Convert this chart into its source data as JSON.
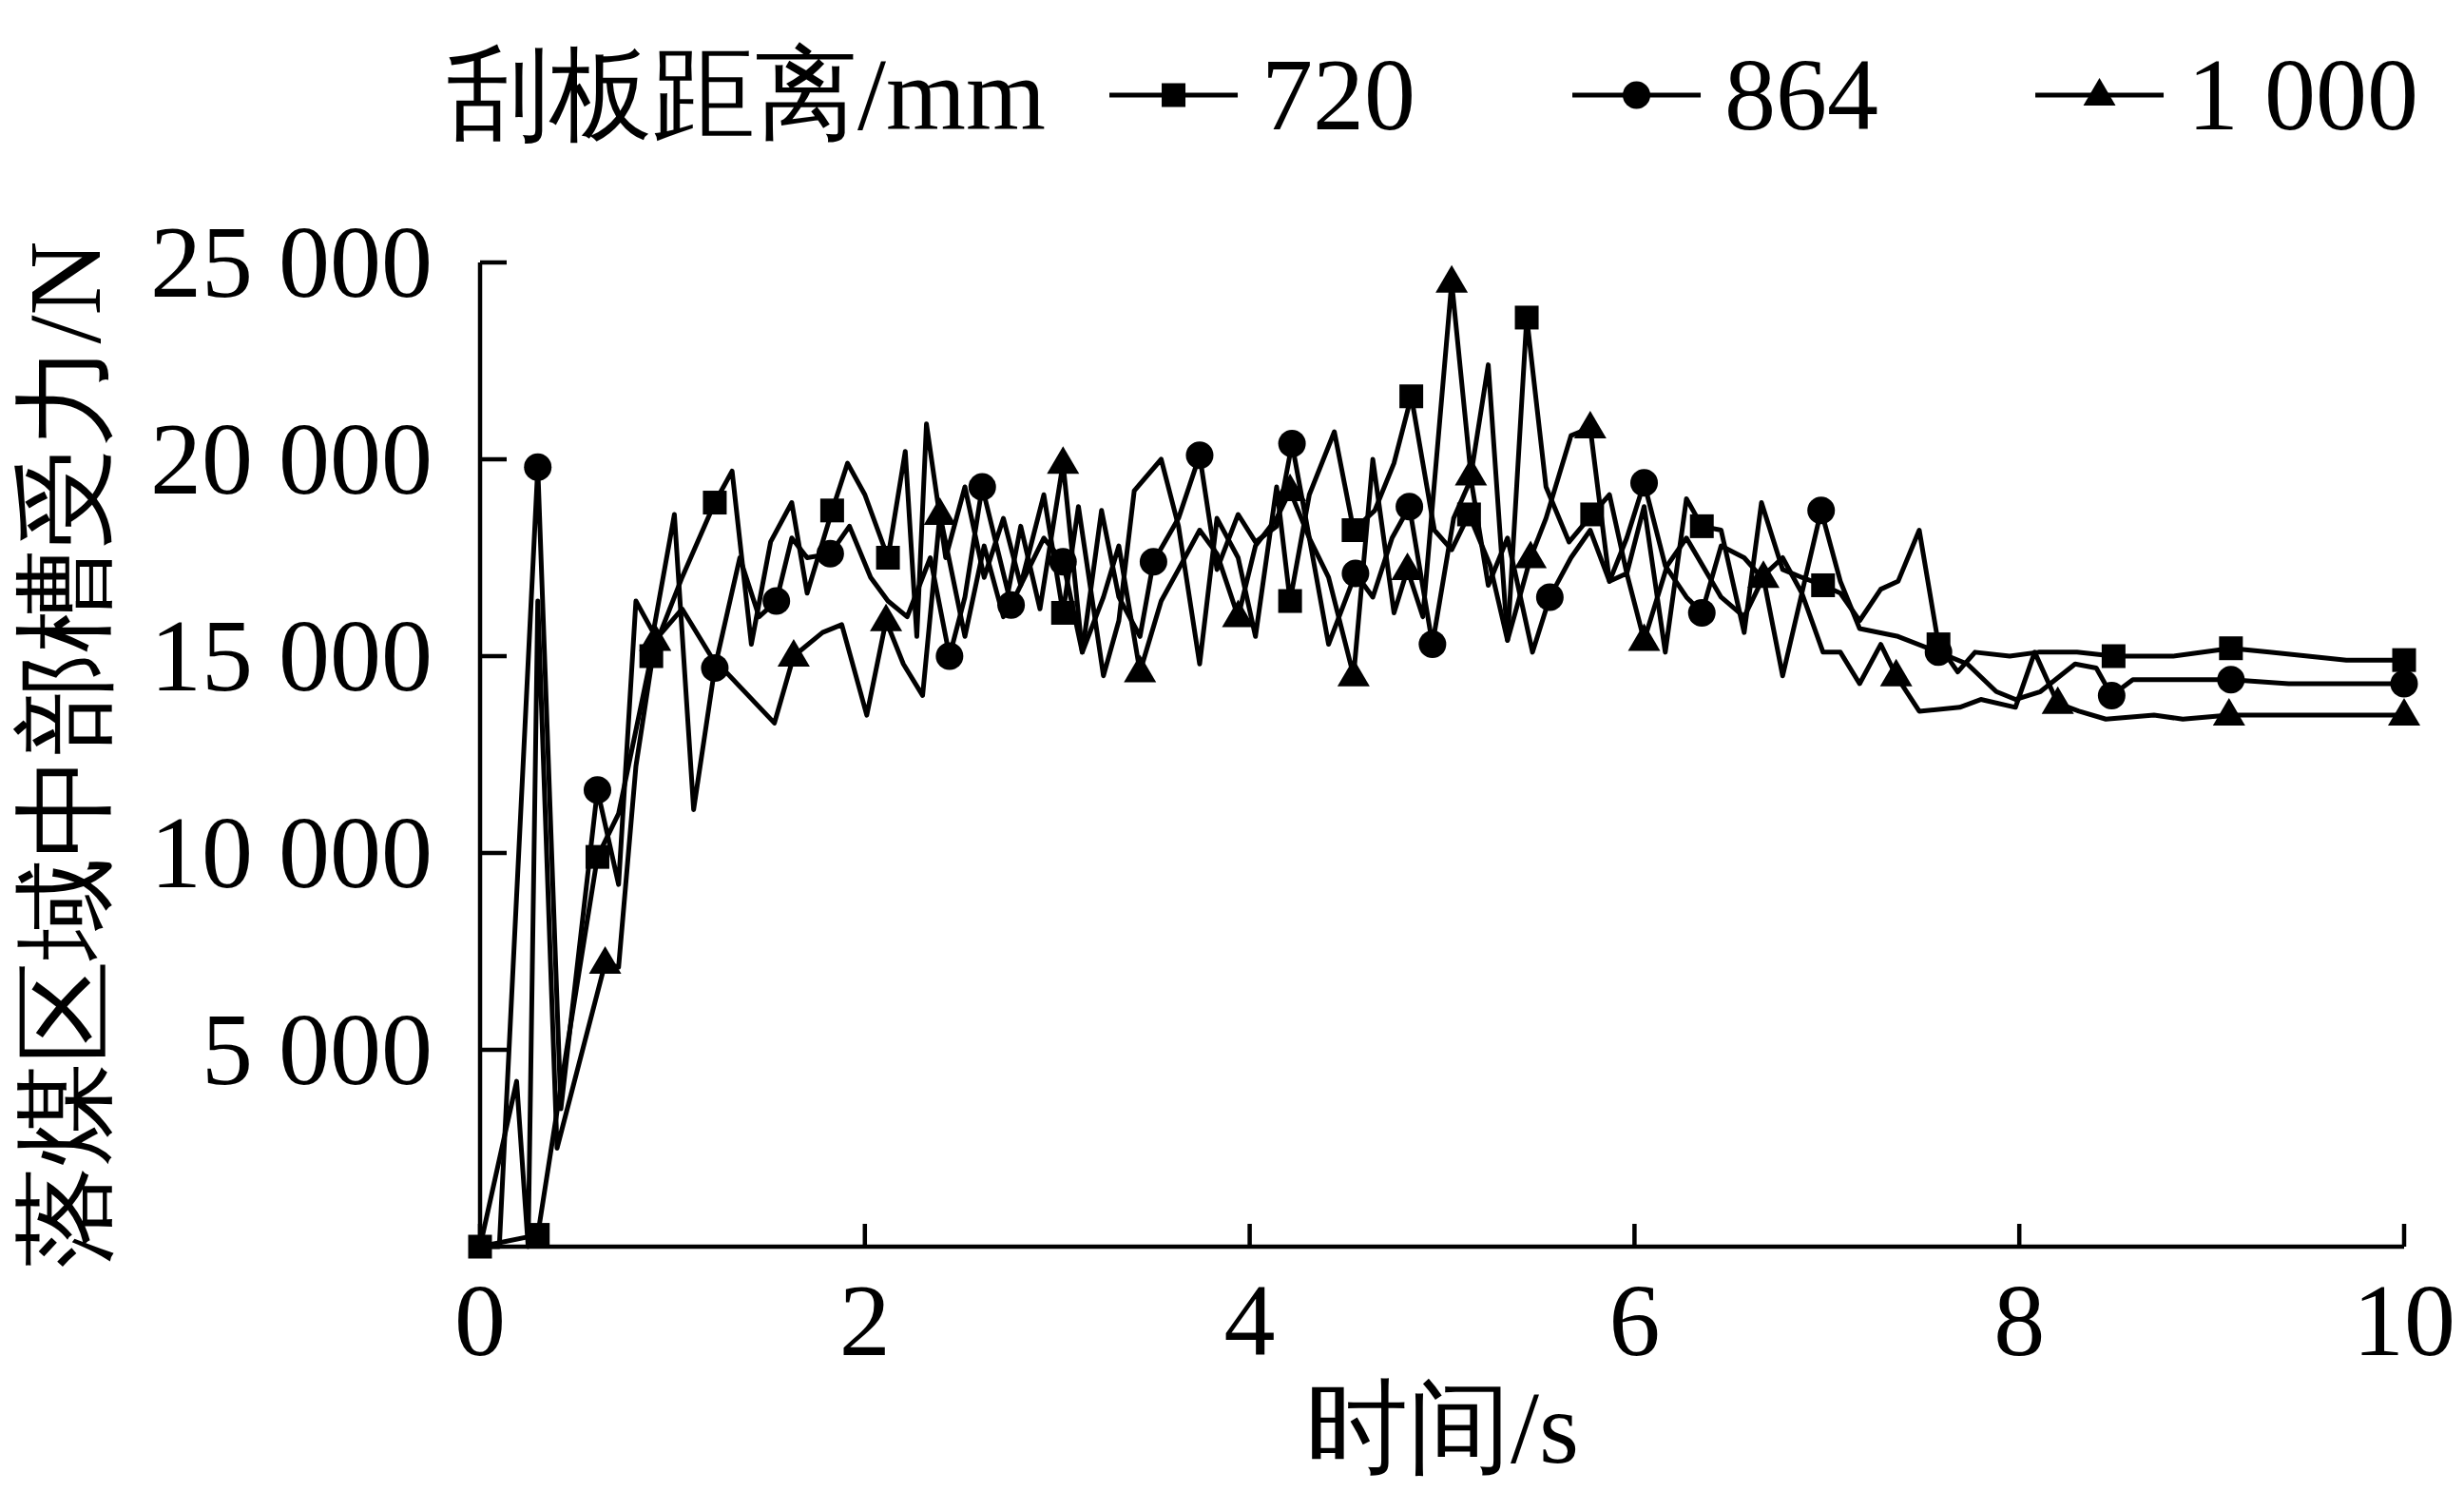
{
  "chart_data": {
    "type": "line",
    "xlabel": "时间/s",
    "ylabel": "落煤区域中部槽受力/N",
    "legend_title": "刮板距离/mm",
    "legend": "top",
    "line_style": "solid",
    "xlim": [
      0,
      10
    ],
    "ylim": [
      0,
      25000
    ],
    "xticks": [
      0,
      2,
      4,
      6,
      8,
      10
    ],
    "yticks": [
      {
        "value": 5000,
        "label": "5 000"
      },
      {
        "value": 10000,
        "label": "10 000"
      },
      {
        "value": 15000,
        "label": "15 000"
      },
      {
        "value": 20000,
        "label": "20 000"
      },
      {
        "value": 25000,
        "label": "25 000"
      }
    ],
    "series": [
      {
        "type": "line",
        "color": "#000000",
        "x": [
          0,
          0.3,
          0.45,
          0.61,
          0.72,
          0.89,
          1.05,
          1.22,
          1.31,
          1.41,
          1.51,
          1.62,
          1.7,
          1.83,
          1.91,
          2.0,
          2.12,
          2.21,
          2.27,
          2.32,
          2.42,
          2.52,
          2.62,
          2.72,
          2.81,
          2.93,
          3.03,
          3.11,
          3.24,
          3.32,
          3.4,
          3.54,
          3.63,
          3.74,
          3.83,
          3.94,
          4.03,
          4.14,
          4.21,
          4.31,
          4.44,
          4.54,
          4.65,
          4.75,
          4.84,
          4.96,
          5.05,
          5.14,
          5.25,
          5.34,
          5.44,
          5.54,
          5.66,
          5.78,
          5.87,
          5.96,
          6.05,
          6.16,
          6.27,
          6.35,
          6.45,
          6.57,
          6.66,
          6.77,
          6.87,
          6.98,
          7.07,
          7.17,
          7.28,
          7.37,
          7.48,
          7.58,
          7.68,
          7.77,
          7.95,
          8.1,
          8.3,
          8.49,
          8.8,
          9.1,
          9.3,
          9.7,
          10
        ],
        "values": [
          0,
          300,
          5000,
          9900,
          11000,
          15000,
          17000,
          18900,
          19700,
          15300,
          17900,
          18900,
          16600,
          18700,
          19900,
          19100,
          17500,
          20200,
          15500,
          20900,
          17500,
          19300,
          17000,
          18500,
          16800,
          19100,
          16100,
          18800,
          14500,
          15900,
          19200,
          20000,
          18300,
          14800,
          18500,
          17500,
          15500,
          19300,
          16400,
          19100,
          20700,
          18200,
          18700,
          19900,
          21600,
          18200,
          17700,
          18600,
          17300,
          15400,
          23600,
          19300,
          17900,
          18600,
          19100,
          17100,
          18800,
          15100,
          19000,
          18300,
          18200,
          15600,
          18900,
          17200,
          17000,
          16800,
          16600,
          15900,
          16700,
          16900,
          18200,
          15300,
          14600,
          15100,
          15000,
          15100,
          15100,
          15000,
          15000,
          15200,
          15100,
          14900,
          14900
        ]
      },
      {
        "type": "line",
        "color": "#000000",
        "x": [
          0,
          0.1,
          0.3,
          0.42,
          0.61,
          0.72,
          0.81,
          0.9,
          1.01,
          1.11,
          1.22,
          1.35,
          1.45,
          1.54,
          1.62,
          1.7,
          1.82,
          1.92,
          2.03,
          2.12,
          2.22,
          2.34,
          2.44,
          2.52,
          2.61,
          2.76,
          2.85,
          2.93,
          3.03,
          3.13,
          3.23,
          3.32,
          3.43,
          3.5,
          3.63,
          3.74,
          3.83,
          3.94,
          4.03,
          4.14,
          4.22,
          4.31,
          4.41,
          4.55,
          4.64,
          4.74,
          4.83,
          4.95,
          5.06,
          5.15,
          5.24,
          5.34,
          5.47,
          5.56,
          5.67,
          5.77,
          5.87,
          5.96,
          6.05,
          6.16,
          6.27,
          6.35,
          6.45,
          6.57,
          6.66,
          6.77,
          6.87,
          6.97,
          7.07,
          7.17,
          7.37,
          7.58,
          7.73,
          7.88,
          7.98,
          8.11,
          8.29,
          8.4,
          8.48,
          8.59,
          9.1,
          9.4,
          10
        ],
        "values": [
          0,
          0,
          19800,
          3500,
          11600,
          9200,
          16400,
          15600,
          18600,
          11100,
          14700,
          17500,
          16000,
          16400,
          18000,
          17500,
          17600,
          18300,
          17000,
          16400,
          16000,
          17500,
          15000,
          16500,
          19300,
          16300,
          17200,
          18000,
          17400,
          15100,
          18700,
          16500,
          15500,
          17400,
          18500,
          20100,
          17200,
          18600,
          17900,
          18300,
          20400,
          18000,
          15300,
          17100,
          16500,
          18000,
          18800,
          15300,
          18500,
          19500,
          16800,
          18000,
          15100,
          16500,
          17500,
          18200,
          16900,
          18000,
          19400,
          17300,
          16500,
          16100,
          17800,
          17500,
          17000,
          17500,
          16600,
          18700,
          16900,
          15700,
          15500,
          15100,
          14800,
          14100,
          13900,
          14100,
          14800,
          14700,
          14000,
          14400,
          14400,
          14300,
          14300
        ]
      },
      {
        "type": "line",
        "color": "#000000",
        "x": [
          0,
          0.19,
          0.25,
          0.3,
          0.4,
          0.65,
          0.72,
          0.81,
          0.91,
          1.05,
          1.2,
          1.53,
          1.63,
          1.78,
          1.88,
          2.01,
          2.11,
          2.2,
          2.3,
          2.39,
          2.52,
          2.62,
          2.72,
          2.81,
          2.91,
          3.03,
          3.13,
          3.24,
          3.32,
          3.43,
          3.54,
          3.63,
          3.74,
          3.83,
          3.94,
          4.03,
          4.14,
          4.21,
          4.31,
          4.41,
          4.54,
          4.64,
          4.75,
          4.82,
          4.9,
          5.05,
          5.15,
          5.24,
          5.34,
          5.46,
          5.54,
          5.67,
          5.77,
          5.87,
          5.96,
          6.05,
          6.17,
          6.27,
          6.45,
          6.57,
          6.67,
          6.77,
          6.87,
          6.98,
          7.07,
          7.17,
          7.28,
          7.36,
          7.48,
          7.69,
          7.8,
          7.98,
          8.08,
          8.2,
          8.31,
          8.45,
          8.7,
          8.85,
          9.09,
          9.4,
          10
        ],
        "values": [
          0,
          4200,
          0,
          16400,
          2500,
          7200,
          7100,
          12200,
          15400,
          16200,
          15000,
          13300,
          15000,
          15600,
          15800,
          13500,
          15900,
          14800,
          14000,
          18600,
          15500,
          17800,
          16000,
          18300,
          16200,
          19900,
          15100,
          16500,
          17800,
          14600,
          16400,
          17200,
          18200,
          17600,
          16000,
          17800,
          18500,
          19200,
          18000,
          17000,
          14500,
          20000,
          16100,
          17200,
          16000,
          24500,
          19600,
          22400,
          15400,
          17500,
          18500,
          20600,
          20800,
          16900,
          17100,
          15400,
          17300,
          18000,
          16500,
          16000,
          17000,
          14500,
          16600,
          15100,
          15100,
          14300,
          15300,
          14500,
          13600,
          13700,
          13900,
          13700,
          15100,
          13800,
          13600,
          13400,
          13500,
          13400,
          13500,
          13500,
          13500
        ]
      },
      {
        "type": "scatter",
        "name": "720",
        "color": "#000000",
        "marker": "square",
        "x": [
          0,
          0.3,
          0.61,
          0.89,
          1.22,
          1.83,
          2.12,
          3.03,
          4.21,
          4.54,
          4.84,
          5.14,
          5.44,
          5.78,
          6.35,
          6.98,
          7.58,
          8.49,
          9.1,
          10
        ],
        "values": [
          0,
          300,
          9900,
          15000,
          18900,
          18700,
          17500,
          16100,
          16400,
          18200,
          21600,
          18600,
          23600,
          18600,
          18300,
          16800,
          15300,
          15000,
          15200,
          14900
        ]
      },
      {
        "type": "scatter",
        "name": "864",
        "color": "#000000",
        "marker": "circle",
        "x": [
          0.3,
          0.61,
          1.22,
          1.54,
          1.82,
          2.44,
          2.61,
          2.76,
          3.03,
          3.5,
          3.74,
          4.22,
          4.55,
          4.83,
          4.95,
          5.56,
          6.05,
          6.35,
          6.97,
          7.58,
          8.48,
          9.1,
          10
        ],
        "values": [
          19800,
          11600,
          14700,
          16400,
          17600,
          15000,
          19300,
          16300,
          17400,
          17400,
          20100,
          20400,
          17100,
          18800,
          15300,
          16500,
          19400,
          16100,
          18700,
          15100,
          14000,
          14400,
          14300
        ]
      },
      {
        "type": "scatter",
        "name": "1 000",
        "color": "#000000",
        "marker": "triangle",
        "x": [
          0.65,
          0.91,
          1.63,
          2.11,
          2.39,
          3.03,
          3.43,
          3.94,
          4.21,
          4.54,
          4.82,
          5.05,
          5.15,
          5.46,
          5.77,
          6.05,
          6.67,
          7.36,
          8.2,
          9.09,
          10
        ],
        "values": [
          7200,
          15400,
          15000,
          15900,
          18600,
          19900,
          14600,
          16000,
          19200,
          14500,
          17200,
          24500,
          19600,
          17500,
          20800,
          15400,
          17000,
          14500,
          13800,
          13500,
          13500
        ]
      }
    ]
  }
}
